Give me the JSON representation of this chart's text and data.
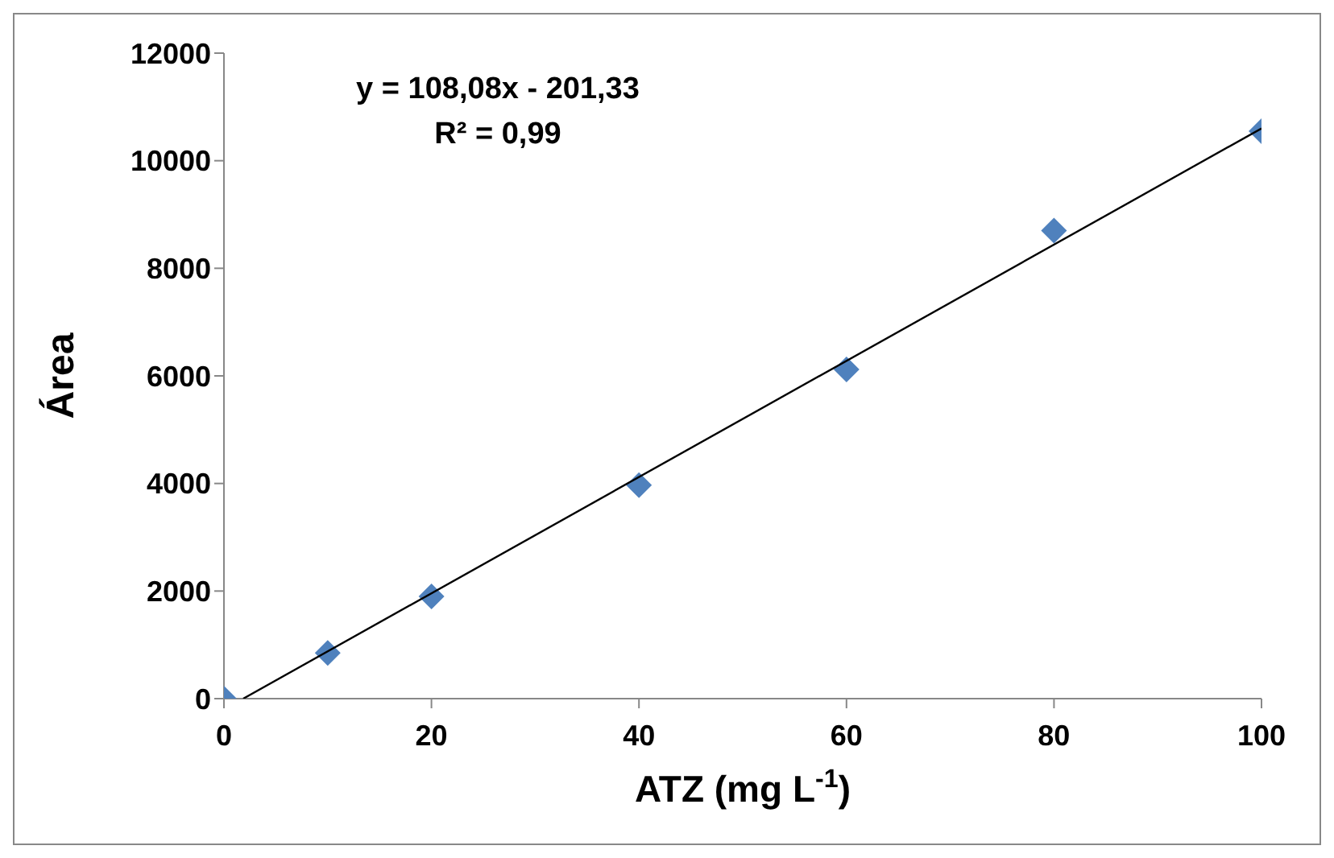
{
  "chart_data": {
    "type": "scatter",
    "xlabel": "ATZ (mg L$^{-1}$)",
    "ylabel": "Área",
    "annotations": [
      "y = 108,08x - 201,33",
      "R² = 0,99"
    ],
    "x": [
      0,
      10,
      20,
      40,
      60,
      80,
      100
    ],
    "series": [
      {
        "color": "#4f81bd",
        "marker": "diamond",
        "values": [
          0,
          850,
          1900,
          3970,
          6120,
          8700,
          10550
        ]
      },
      {
        "type": "line",
        "color": "#000000",
        "marker": "none",
        "x": [
          1.86,
          100
        ],
        "values": [
          0,
          10600
        ]
      }
    ],
    "xlim": [
      0,
      100
    ],
    "xticks": [
      0,
      20,
      40,
      60,
      80,
      100
    ],
    "ylim": [
      0,
      12000
    ],
    "yticks": [
      0,
      2000,
      4000,
      6000,
      8000,
      10000,
      12000
    ],
    "grid": false,
    "legend": false
  }
}
